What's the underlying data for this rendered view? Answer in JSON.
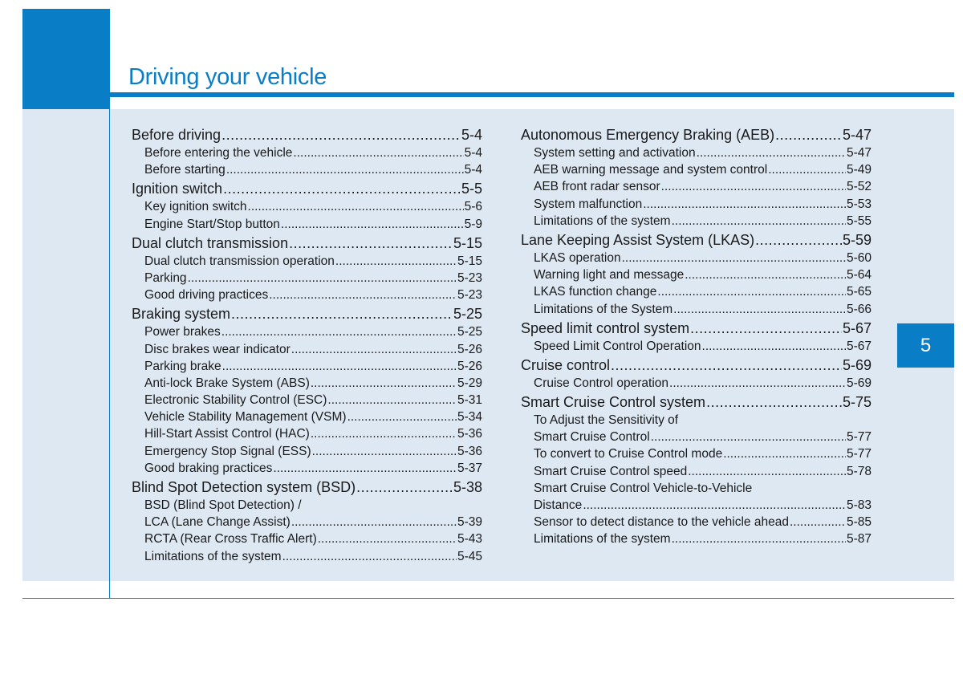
{
  "header": {
    "title": "Driving your vehicle",
    "chapter_tab": "5"
  },
  "colors": {
    "accent": "#0a7dc7",
    "panel": "#dde8f3"
  },
  "left_column": [
    {
      "level": "main",
      "label": "Before driving",
      "page": "5-4"
    },
    {
      "level": "sub",
      "label": "Before entering the vehicle ",
      "page": "5-4"
    },
    {
      "level": "sub",
      "label": "Before starting",
      "page": "5-4"
    },
    {
      "level": "main",
      "label": "Ignition switch ",
      "page": "5-5"
    },
    {
      "level": "sub",
      "label": "Key ignition switch",
      "page": "5-6"
    },
    {
      "level": "sub",
      "label": "Engine Start/Stop button",
      "page": "5-9"
    },
    {
      "level": "main",
      "label": "Dual clutch transmission",
      "page": "5-15"
    },
    {
      "level": "sub",
      "label": "Dual clutch transmission operation ",
      "page": "5-15"
    },
    {
      "level": "sub",
      "label": "Parking",
      "page": "5-23"
    },
    {
      "level": "sub",
      "label": "Good driving practices",
      "page": "5-23"
    },
    {
      "level": "main",
      "label": "Braking system",
      "page": "5-25"
    },
    {
      "level": "sub",
      "label": "Power brakes ",
      "page": "5-25"
    },
    {
      "level": "sub",
      "label": "Disc brakes wear indicator ",
      "page": "5-26"
    },
    {
      "level": "sub",
      "label": "Parking brake",
      "page": "5-26"
    },
    {
      "level": "sub",
      "label": "Anti-lock Brake System (ABS) ",
      "page": "5-29"
    },
    {
      "level": "sub",
      "label": "Electronic Stability Control (ESC)",
      "page": "5-31"
    },
    {
      "level": "sub",
      "label": "Vehicle Stability Management (VSM)",
      "page": "5-34"
    },
    {
      "level": "sub",
      "label": "Hill-Start Assist Control (HAC) ",
      "page": "5-36"
    },
    {
      "level": "sub",
      "label": "Emergency Stop Signal (ESS) ",
      "page": "5-36"
    },
    {
      "level": "sub",
      "label": "Good braking practices",
      "page": "5-37"
    },
    {
      "level": "main",
      "label": "Blind Spot Detection system (BSD) ",
      "page": "5-38"
    },
    {
      "level": "sub",
      "label": "BSD (Blind Spot Detection) /",
      "page": ""
    },
    {
      "level": "sub",
      "label": "LCA (Lane Change Assist)",
      "page": "5-39"
    },
    {
      "level": "sub",
      "label": "RCTA (Rear Cross Traffic Alert) ",
      "page": "5-43"
    },
    {
      "level": "sub",
      "label": "Limitations of the system ",
      "page": "5-45"
    }
  ],
  "right_column": [
    {
      "level": "main",
      "label": "Autonomous Emergency Braking (AEB)",
      "page": "5-47"
    },
    {
      "level": "sub",
      "label": "System setting and activation",
      "page": "5-47"
    },
    {
      "level": "sub",
      "label": "AEB warning message and system control",
      "page": "5-49"
    },
    {
      "level": "sub",
      "label": "AEB front radar sensor",
      "page": "5-52"
    },
    {
      "level": "sub",
      "label": "System malfunction",
      "page": "5-53"
    },
    {
      "level": "sub",
      "label": "Limitations of the system ",
      "page": "5-55"
    },
    {
      "level": "main",
      "label": "Lane Keeping Assist System (LKAS) ",
      "page": "5-59"
    },
    {
      "level": "sub",
      "label": "LKAS operation",
      "page": "5-60"
    },
    {
      "level": "sub",
      "label": "Warning light and message ",
      "page": "5-64"
    },
    {
      "level": "sub",
      "label": "LKAS function change",
      "page": "5-65"
    },
    {
      "level": "sub",
      "label": "Limitations of the System",
      "page": "5-66"
    },
    {
      "level": "main",
      "label": "Speed limit control system ",
      "page": "5-67"
    },
    {
      "level": "sub",
      "label": "Speed Limit Control Operation",
      "page": "5-67"
    },
    {
      "level": "main",
      "label": "Cruise control ",
      "page": "5-69"
    },
    {
      "level": "sub",
      "label": "Cruise Control operation ",
      "page": "5-69"
    },
    {
      "level": "main",
      "label": "Smart Cruise Control system",
      "page": "5-75"
    },
    {
      "level": "sub",
      "label": "To Adjust the Sensitivity of",
      "page": ""
    },
    {
      "level": "sub",
      "label": "Smart Cruise Control ",
      "page": "5-77"
    },
    {
      "level": "sub",
      "label": "To convert to Cruise Control mode ",
      "page": "5-77"
    },
    {
      "level": "sub",
      "label": "Smart Cruise Control speed",
      "page": "5-78"
    },
    {
      "level": "sub",
      "label": "Smart Cruise Control Vehicle-to-Vehicle",
      "page": ""
    },
    {
      "level": "sub",
      "label": "Distance",
      "page": "5-83"
    },
    {
      "level": "sub",
      "label": "Sensor to detect distance to the vehicle ahead",
      "page": "5-85"
    },
    {
      "level": "sub",
      "label": "Limitations of the system ",
      "page": "5-87"
    }
  ]
}
